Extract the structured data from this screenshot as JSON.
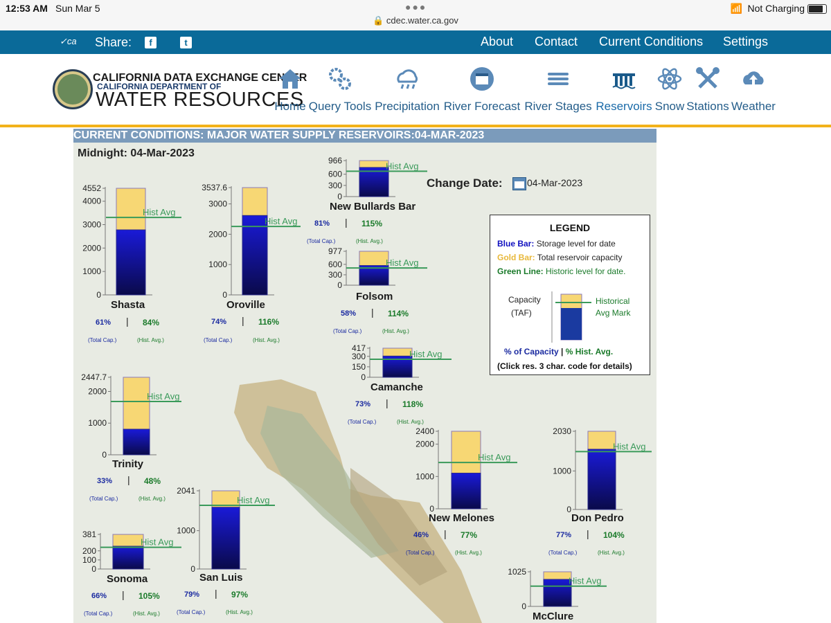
{
  "status_bar": {
    "time": "12:53 AM",
    "date": "Sun Mar 5",
    "url": "cdec.water.ca.gov",
    "charging": "Not Charging"
  },
  "share_bar": {
    "share_label": "Share:",
    "links": [
      "About",
      "Contact",
      "Current Conditions",
      "Settings"
    ]
  },
  "header": {
    "org_line1": "CALIFORNIA DATA EXCHANGE CENTER",
    "org_line2": "CALIFORNIA DEPARTMENT OF",
    "org_line3": "WATER RESOURCES",
    "nav": [
      {
        "label": "Home",
        "icon": "house-icon"
      },
      {
        "label": "Query Tools",
        "icon": "gears-icon"
      },
      {
        "label": "Precipitation",
        "icon": "rain-cloud-icon"
      },
      {
        "label": "River Forecast",
        "icon": "calendar-icon"
      },
      {
        "label": "River Stages",
        "icon": "waves-icon"
      },
      {
        "label": "Reservoirs",
        "icon": "dam-icon",
        "active": true
      },
      {
        "label": "Snow",
        "icon": "atom-icon"
      },
      {
        "label": "Stations",
        "icon": "tools-icon"
      },
      {
        "label": "Weather",
        "icon": "cloud-upload-icon"
      }
    ]
  },
  "page": {
    "title": "CURRENT CONDITIONS: MAJOR WATER SUPPLY RESERVOIRS:04-MAR-2023",
    "midnight": "Midnight: 04-Mar-2023",
    "change_date_label": "Change Date",
    "change_date_value": "04-Mar-2023",
    "hist_avg_label": "Hist Avg",
    "total_cap_label": "(Total Cap.)",
    "hist_avg_small_label": "(Hist. Avg.)"
  },
  "legend": {
    "title": "LEGEND",
    "blue_key": "Blue Bar:",
    "blue_text": "Storage level for date",
    "gold_key": "Gold Bar:",
    "gold_text": "Total reservoir capacity",
    "green_key": "Green Line:",
    "green_text": "Historic level for date.",
    "capacity_label": "Capacity",
    "taf_label": "(TAF)",
    "historical_label": "Historical",
    "avg_mark_label": "Avg Mark",
    "pct_capacity": "% of Capacity",
    "pct_hist": "% Hist. Avg.",
    "click_note": "(Click res. 3 char. code for details)"
  },
  "colors": {
    "blue": "#1010c0",
    "gold": "#f7d774",
    "green": "#3a9a5a",
    "banner": "#0a6a99",
    "title_bar": "#7b9bbb"
  },
  "chart_data": [
    {
      "type": "bar",
      "name": "Shasta",
      "capacity": 4552,
      "storage": 2777,
      "hist_avg": 3306,
      "ticks": [
        "4552",
        "4000",
        "3000",
        "2000",
        "1000",
        "0"
      ],
      "pct_capacity": "61%",
      "pct_hist": "84%"
    },
    {
      "type": "bar",
      "name": "Oroville",
      "capacity": 3537.6,
      "storage": 2618,
      "hist_avg": 2257,
      "ticks": [
        "3537.6",
        "3000",
        "2000",
        "1000",
        "0"
      ],
      "pct_capacity": "74%",
      "pct_hist": "116%"
    },
    {
      "type": "bar",
      "name": "New Bullards Bar",
      "capacity": 966,
      "storage": 782,
      "hist_avg": 680,
      "ticks": [
        "966",
        "600",
        "300",
        "0"
      ],
      "pct_capacity": "81%",
      "pct_hist": "115%"
    },
    {
      "type": "bar",
      "name": "Folsom",
      "capacity": 977,
      "storage": 567,
      "hist_avg": 497,
      "ticks": [
        "977",
        "600",
        "300",
        "0"
      ],
      "pct_capacity": "58%",
      "pct_hist": "114%"
    },
    {
      "type": "bar",
      "name": "Camanche",
      "capacity": 417,
      "storage": 304,
      "hist_avg": 258,
      "ticks": [
        "417",
        "300",
        "150",
        "0"
      ],
      "pct_capacity": "73%",
      "pct_hist": "118%"
    },
    {
      "type": "bar",
      "name": "Trinity",
      "capacity": 2447.7,
      "storage": 808,
      "hist_avg": 1683,
      "ticks": [
        "2447.7",
        "2000",
        "1000",
        "0"
      ],
      "pct_capacity": "33%",
      "pct_hist": "48%"
    },
    {
      "type": "bar",
      "name": "New Melones",
      "capacity": 2400,
      "storage": 1104,
      "hist_avg": 1434,
      "ticks": [
        "2400",
        "2000",
        "1000",
        "0"
      ],
      "pct_capacity": "46%",
      "pct_hist": "77%"
    },
    {
      "type": "bar",
      "name": "Don Pedro",
      "capacity": 2030,
      "storage": 1563,
      "hist_avg": 1503,
      "ticks": [
        "2030",
        "1000",
        "0"
      ],
      "pct_capacity": "77%",
      "pct_hist": "104%"
    },
    {
      "type": "bar",
      "name": "Sonoma",
      "capacity": 381,
      "storage": 251,
      "hist_avg": 239,
      "ticks": [
        "381",
        "200",
        "100",
        "0"
      ],
      "pct_capacity": "66%",
      "pct_hist": "105%"
    },
    {
      "type": "bar",
      "name": "San Luis",
      "capacity": 2041,
      "storage": 1612,
      "hist_avg": 1662,
      "ticks": [
        "2041",
        "1000",
        "0"
      ],
      "pct_capacity": "79%",
      "pct_hist": "97%"
    },
    {
      "type": "bar",
      "name": "McClure",
      "capacity": 1025,
      "storage": 800,
      "hist_avg": 600,
      "ticks": [
        "1025",
        "0"
      ]
    }
  ]
}
